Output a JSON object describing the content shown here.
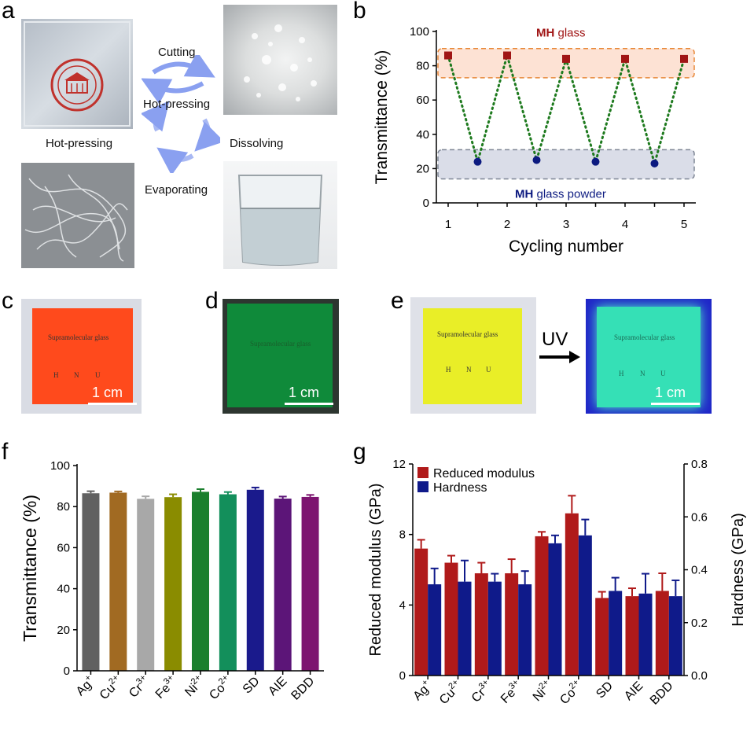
{
  "panels": {
    "a": "a",
    "b": "b",
    "c": "c",
    "d": "d",
    "e": "e",
    "f": "f",
    "g": "g"
  },
  "panel_a": {
    "steps": [
      "Cutting",
      "Hot-pressing",
      "Dissolving",
      "Evaporating",
      "Hot-pressing"
    ],
    "arrow_color": "#8aa0f0"
  },
  "glass": {
    "title": "Supramolecular glass",
    "h": "H",
    "n": "N",
    "u": "U",
    "scale": "1 cm",
    "c_color": "#ff4a1c",
    "d_color": "#0f8a3a",
    "e_color": "#e9ee27",
    "e_uv_color": "#35e0b6",
    "uv": "UV"
  },
  "chart_data": [
    {
      "type": "scatter",
      "panel": "b",
      "xlabel": "Cycling number",
      "ylabel": "Transmittance (%)",
      "ylim": [
        0,
        100
      ],
      "x_ticks": [
        "1",
        "2",
        "3",
        "4",
        "5"
      ],
      "y_ticks": [
        "0",
        "20",
        "40",
        "60",
        "80",
        "100"
      ],
      "grid": false,
      "band_labels": {
        "glass_bold": "MH",
        "glass": " glass",
        "powder_bold": "MH",
        "powder": " glass powder"
      },
      "series": [
        {
          "x": [
            1,
            2,
            3,
            4,
            5
          ],
          "y": [
            86,
            86,
            84,
            84,
            84
          ],
          "color": "#a01515",
          "marker": "square"
        },
        {
          "x": [
            1.5,
            2.5,
            3.5,
            4.5
          ],
          "y": [
            24,
            25,
            24,
            23
          ],
          "color": "#0c1a80",
          "marker": "circle"
        }
      ],
      "connector_color": "#1e7a1e"
    },
    {
      "type": "bar",
      "panel": "f",
      "ylabel": "Transmittance (%)",
      "ylim": [
        0,
        100
      ],
      "y_ticks": [
        "0",
        "20",
        "40",
        "60",
        "80",
        "100"
      ],
      "categories": [
        "Ag",
        "Cu",
        "Cr",
        "Fe",
        "Ni",
        "Co",
        "SD",
        "AIE",
        "BDD"
      ],
      "superscripts": [
        "+",
        "2+",
        "3+",
        "3+",
        "2+",
        "2+",
        "",
        "",
        ""
      ],
      "values": [
        86.5,
        86.8,
        83.8,
        84.6,
        87.2,
        86.0,
        88.2,
        83.9,
        84.7
      ],
      "errors": [
        1.0,
        0.6,
        1.2,
        1.4,
        1.3,
        1.1,
        1.1,
        1.0,
        1.0
      ],
      "colors": [
        "#616161",
        "#a16a22",
        "#a8a8a8",
        "#8a8c00",
        "#1a7f2d",
        "#138f5b",
        "#1a1a8c",
        "#5c1578",
        "#7d1470"
      ]
    },
    {
      "type": "bar",
      "panel": "g",
      "ylabel": "Reduced modulus (GPa)",
      "y2label": "Hardness (GPa)",
      "ylim": [
        0,
        12
      ],
      "y2lim": [
        0,
        0.8
      ],
      "y_ticks": [
        "0",
        "4",
        "8",
        "12"
      ],
      "y2_ticks": [
        "0.0",
        "0.2",
        "0.4",
        "0.6",
        "0.8"
      ],
      "categories": [
        "Ag",
        "Cu",
        "Cr",
        "Fe",
        "Ni",
        "Co",
        "SD",
        "AIE",
        "BDD"
      ],
      "superscripts": [
        "+",
        "2+",
        "3+",
        "3+",
        "2+",
        "2+",
        "",
        "",
        ""
      ],
      "legend": "top-left",
      "series": [
        {
          "name": "Reduced modulus",
          "axis": "left",
          "color": "#b01a1a",
          "values": [
            7.2,
            6.4,
            5.8,
            5.8,
            7.9,
            9.2,
            4.4,
            4.5,
            4.8
          ],
          "errors": [
            0.5,
            0.4,
            0.6,
            0.8,
            0.25,
            1.0,
            0.35,
            0.45,
            1.0
          ]
        },
        {
          "name": "Hardness",
          "axis": "right",
          "color": "#0f1a8a",
          "values": [
            0.345,
            0.355,
            0.355,
            0.345,
            0.5,
            0.53,
            0.32,
            0.31,
            0.3
          ],
          "errors": [
            0.06,
            0.08,
            0.03,
            0.05,
            0.03,
            0.06,
            0.05,
            0.075,
            0.06
          ]
        }
      ]
    }
  ]
}
